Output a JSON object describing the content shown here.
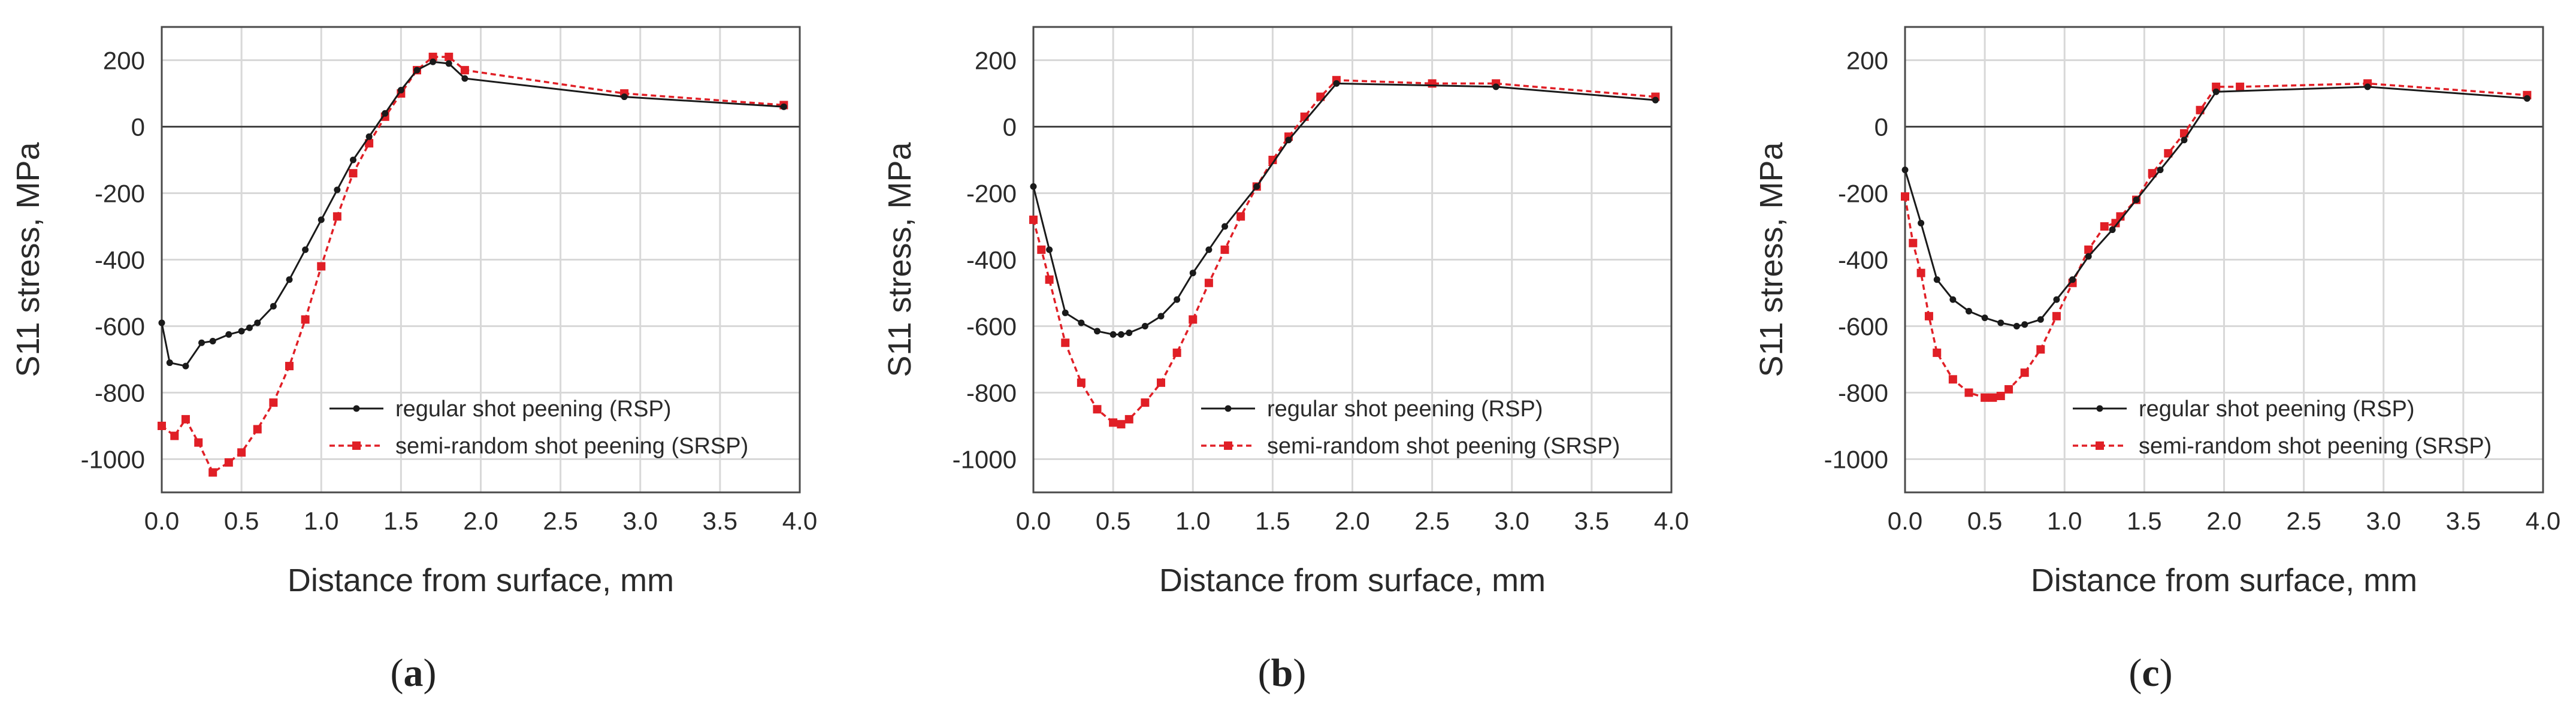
{
  "figure": {
    "background": "#ffffff"
  },
  "colors": {
    "rsp": "#1a1a1a",
    "srsp": "#e01f26",
    "grid": "#d8d8d8",
    "frame": "#4a4a4a",
    "zero_line": "#444444"
  },
  "chart_data": [
    {
      "type": "line",
      "panel": "a",
      "panel_label": "(a)",
      "xlabel": "Distance from surface, mm",
      "ylabel": "S11 stress, MPa",
      "xlim": [
        0,
        4
      ],
      "ylim": [
        -1100,
        300
      ],
      "xticks": [
        0,
        0.5,
        1,
        1.5,
        2,
        2.5,
        3,
        3.5,
        4
      ],
      "xtick_labels": [
        "0.0",
        "0.5",
        "1.0",
        "1.5",
        "2.0",
        "2.5",
        "3.0",
        "3.5",
        "4.0"
      ],
      "yticks": [
        200,
        0,
        -200,
        -400,
        -600,
        -800,
        -1000
      ],
      "ytick_labels": [
        "200",
        "0",
        "-200",
        "-400",
        "-600",
        "-800",
        "-1000"
      ],
      "legend_position": "lower-right",
      "series": [
        {
          "name": "regular shot peening (RSP)",
          "style": "solid",
          "x": [
            0,
            0.05,
            0.15,
            0.25,
            0.32,
            0.42,
            0.5,
            0.55,
            0.6,
            0.7,
            0.8,
            0.9,
            1.0,
            1.1,
            1.2,
            1.3,
            1.4,
            1.5,
            1.6,
            1.7,
            1.8,
            1.9,
            2.9,
            3.9
          ],
          "y": [
            -590,
            -710,
            -720,
            -650,
            -645,
            -625,
            -615,
            -605,
            -590,
            -540,
            -460,
            -370,
            -280,
            -190,
            -100,
            -30,
            40,
            110,
            170,
            195,
            190,
            145,
            90,
            60
          ]
        },
        {
          "name": "semi-random shot peening (SRSP)",
          "style": "dashed",
          "x": [
            0,
            0.08,
            0.15,
            0.23,
            0.32,
            0.42,
            0.5,
            0.6,
            0.7,
            0.8,
            0.9,
            1.0,
            1.1,
            1.2,
            1.3,
            1.4,
            1.5,
            1.6,
            1.7,
            1.8,
            1.9,
            2.9,
            3.9
          ],
          "y": [
            -900,
            -930,
            -880,
            -950,
            -1040,
            -1010,
            -980,
            -910,
            -830,
            -720,
            -580,
            -420,
            -270,
            -140,
            -50,
            30,
            100,
            170,
            210,
            210,
            170,
            100,
            65
          ]
        }
      ]
    },
    {
      "type": "line",
      "panel": "b",
      "panel_label": "(b)",
      "xlabel": "Distance from surface, mm",
      "ylabel": "S11 stress, MPa",
      "xlim": [
        0,
        4
      ],
      "ylim": [
        -1100,
        300
      ],
      "xticks": [
        0,
        0.5,
        1,
        1.5,
        2,
        2.5,
        3,
        3.5,
        4
      ],
      "xtick_labels": [
        "0.0",
        "0.5",
        "1.0",
        "1.5",
        "2.0",
        "2.5",
        "3.0",
        "3.5",
        "4.0"
      ],
      "yticks": [
        200,
        0,
        -200,
        -400,
        -600,
        -800,
        -1000
      ],
      "ytick_labels": [
        "200",
        "0",
        "-200",
        "-400",
        "-600",
        "-800",
        "-1000"
      ],
      "legend_position": "lower-right",
      "series": [
        {
          "name": "regular shot peening (RSP)",
          "style": "solid",
          "x": [
            0,
            0.1,
            0.2,
            0.3,
            0.4,
            0.5,
            0.55,
            0.6,
            0.7,
            0.8,
            0.9,
            1.0,
            1.1,
            1.2,
            1.4,
            1.6,
            1.9,
            2.9,
            3.9
          ],
          "y": [
            -180,
            -370,
            -560,
            -590,
            -615,
            -625,
            -625,
            -620,
            -600,
            -570,
            -520,
            -440,
            -370,
            -300,
            -180,
            -40,
            130,
            120,
            80
          ]
        },
        {
          "name": "semi-random shot peening (SRSP)",
          "style": "dashed",
          "x": [
            0,
            0.05,
            0.1,
            0.2,
            0.3,
            0.4,
            0.5,
            0.55,
            0.6,
            0.7,
            0.8,
            0.9,
            1.0,
            1.1,
            1.2,
            1.3,
            1.4,
            1.5,
            1.6,
            1.7,
            1.8,
            1.9,
            2.5,
            2.9,
            3.9
          ],
          "y": [
            -280,
            -370,
            -460,
            -650,
            -770,
            -850,
            -890,
            -895,
            -880,
            -830,
            -770,
            -680,
            -580,
            -470,
            -370,
            -270,
            -180,
            -100,
            -30,
            30,
            90,
            140,
            130,
            130,
            90
          ]
        }
      ]
    },
    {
      "type": "line",
      "panel": "c",
      "panel_label": "(c)",
      "xlabel": "Distance from surface, mm",
      "ylabel": "S11 stress, MPa",
      "xlim": [
        0,
        4
      ],
      "ylim": [
        -1100,
        300
      ],
      "xticks": [
        0,
        0.5,
        1,
        1.5,
        2,
        2.5,
        3,
        3.5,
        4
      ],
      "xtick_labels": [
        "0.0",
        "0.5",
        "1.0",
        "1.5",
        "2.0",
        "2.5",
        "3.0",
        "3.5",
        "4.0"
      ],
      "yticks": [
        200,
        0,
        -200,
        -400,
        -600,
        -800,
        -1000
      ],
      "ytick_labels": [
        "200",
        "0",
        "-200",
        "-400",
        "-600",
        "-800",
        "-1000"
      ],
      "legend_position": "lower-right",
      "series": [
        {
          "name": "regular shot peening (RSP)",
          "style": "solid",
          "x": [
            0,
            0.1,
            0.2,
            0.3,
            0.4,
            0.5,
            0.6,
            0.7,
            0.75,
            0.85,
            0.95,
            1.05,
            1.15,
            1.3,
            1.45,
            1.6,
            1.75,
            1.95,
            2.9,
            3.9
          ],
          "y": [
            -130,
            -290,
            -460,
            -520,
            -555,
            -575,
            -590,
            -600,
            -595,
            -580,
            -520,
            -460,
            -390,
            -310,
            -220,
            -130,
            -40,
            105,
            120,
            85
          ]
        },
        {
          "name": "semi-random shot peening (SRSP)",
          "style": "dashed",
          "x": [
            0,
            0.05,
            0.1,
            0.15,
            0.2,
            0.3,
            0.4,
            0.5,
            0.55,
            0.6,
            0.65,
            0.75,
            0.85,
            0.95,
            1.05,
            1.15,
            1.25,
            1.32,
            1.35,
            1.45,
            1.55,
            1.65,
            1.75,
            1.85,
            1.95,
            2.1,
            2.9,
            3.9
          ],
          "y": [
            -210,
            -350,
            -440,
            -570,
            -680,
            -760,
            -800,
            -815,
            -815,
            -810,
            -790,
            -740,
            -670,
            -570,
            -470,
            -370,
            -300,
            -290,
            -270,
            -220,
            -140,
            -80,
            -20,
            50,
            120,
            120,
            130,
            95
          ]
        }
      ]
    }
  ]
}
